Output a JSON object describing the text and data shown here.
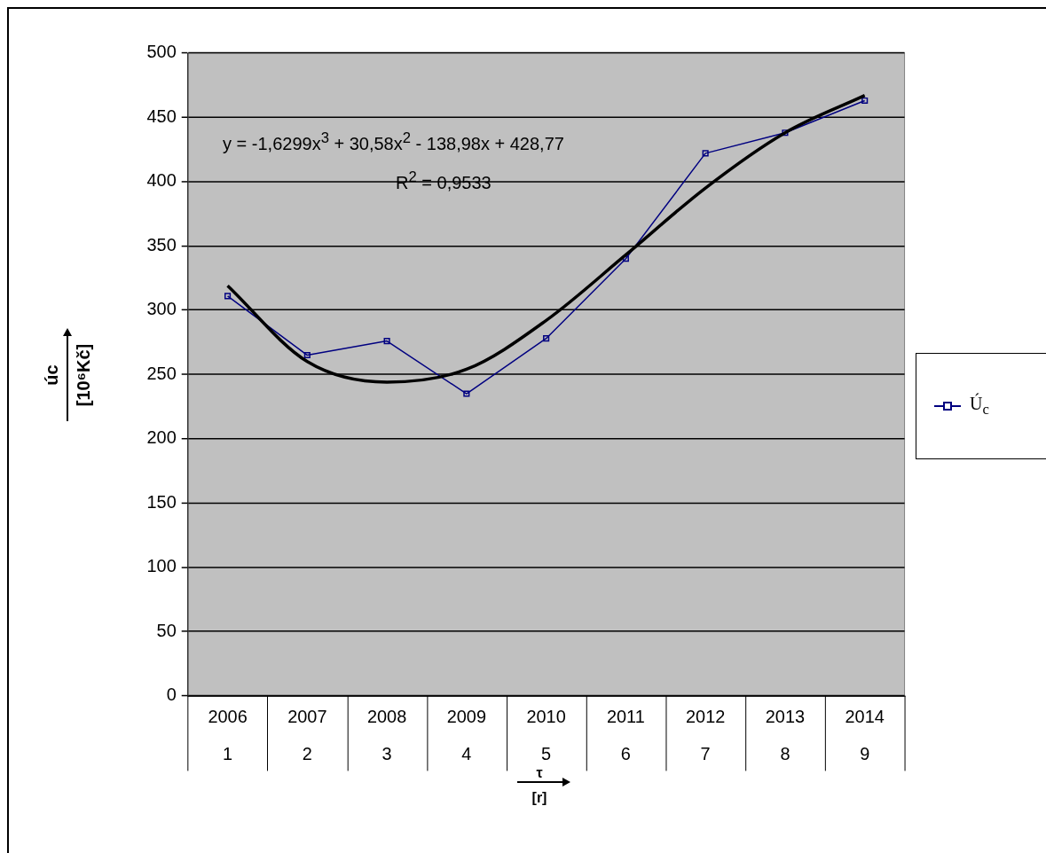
{
  "chart_data": {
    "type": "line",
    "categories": [
      "2006\n1",
      "2007\n2",
      "2008\n3",
      "2009\n4",
      "2010\n5",
      "2011\n6",
      "2012\n7",
      "2013\n8",
      "2014\n9"
    ],
    "series": [
      {
        "name": "Ú$_{c}$",
        "color": "#000080",
        "marker": "square",
        "values": [
          311,
          265,
          276,
          235,
          278,
          340,
          422,
          438,
          463
        ]
      },
      {
        "type": "line",
        "color": "#000000",
        "marker": "none",
        "x": [
          "2006\n1",
          "2007\n2",
          "2008\n3",
          "2009\n4",
          "2010\n5",
          "2011\n6",
          "2012\n7",
          "2013\n8",
          "2014\n9"
        ],
        "values": [
          319,
          260,
          244,
          254,
          292,
          343,
          395,
          438,
          467
        ]
      }
    ],
    "ylim": [
      0,
      500
    ],
    "yticks": [
      0,
      50,
      100,
      150,
      200,
      250,
      300,
      350,
      400,
      450,
      500
    ],
    "ylabel": "úc\n[10⁶Kč]",
    "xlabel": "τ\n[r]",
    "annotations": [
      "y = -1,6299x$^{3}$ + 30,58x$^{2}$ - 138,98x + 428,77",
      "R$^{2}$ = 0,9533"
    ],
    "grid": "y",
    "legend": "right"
  }
}
